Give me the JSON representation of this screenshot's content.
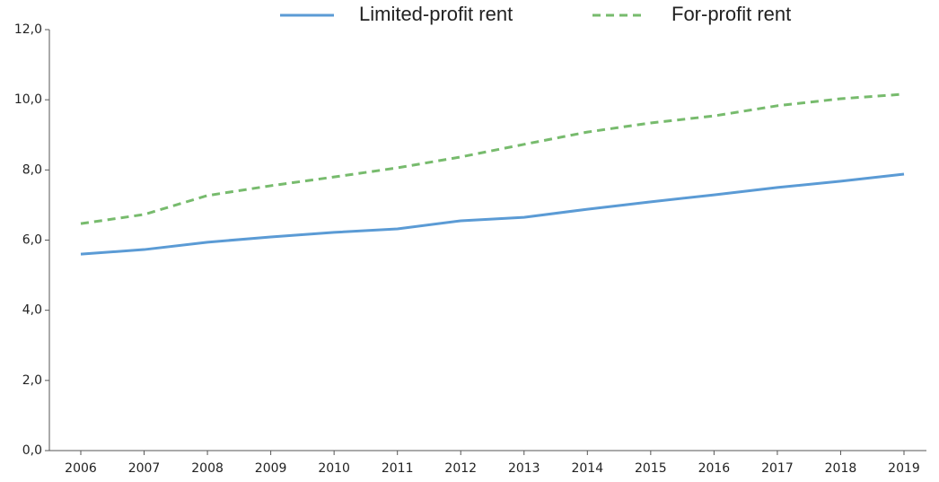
{
  "chart_data": {
    "type": "line",
    "categories": [
      "2006",
      "2007",
      "2008",
      "2009",
      "2010",
      "2011",
      "2012",
      "2013",
      "2014",
      "2015",
      "2016",
      "2017",
      "2018",
      "2019"
    ],
    "series": [
      {
        "name": "Limited-profit rent",
        "color": "#5b9bd5",
        "dash": false,
        "values": [
          5.6,
          5.73,
          5.94,
          6.09,
          6.22,
          6.32,
          6.55,
          6.65,
          6.88,
          7.09,
          7.29,
          7.5,
          7.68,
          7.88
        ]
      },
      {
        "name": "For-profit rent",
        "color": "#77bb6d",
        "dash": true,
        "values": [
          6.47,
          6.73,
          7.27,
          7.55,
          7.8,
          8.06,
          8.37,
          8.73,
          9.08,
          9.34,
          9.54,
          9.83,
          10.03,
          10.16
        ]
      }
    ],
    "ylim": [
      0,
      12
    ],
    "yticks": [
      {
        "value": 0,
        "label": "0,0"
      },
      {
        "value": 2,
        "label": "2,0"
      },
      {
        "value": 4,
        "label": "4,0"
      },
      {
        "value": 6,
        "label": "6,0"
      },
      {
        "value": 8,
        "label": "8,0"
      },
      {
        "value": 10,
        "label": "10,0"
      },
      {
        "value": 12,
        "label": "12,0"
      }
    ],
    "grid": false,
    "legend": "top"
  }
}
